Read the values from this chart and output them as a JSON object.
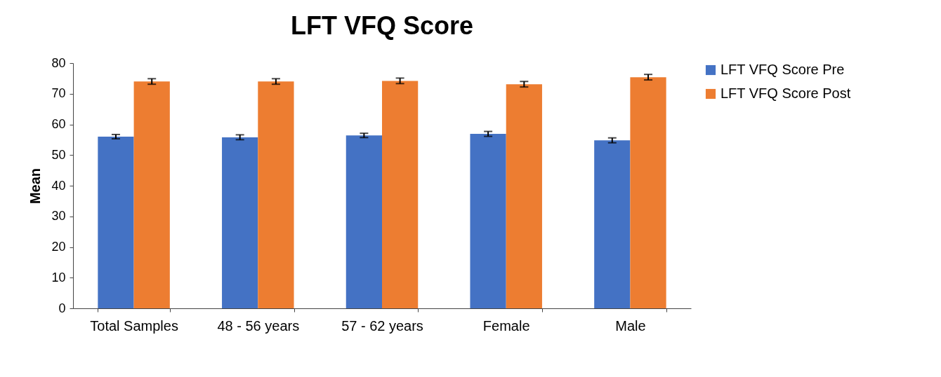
{
  "chart_data": {
    "type": "bar",
    "title": "LFT VFQ Score",
    "ylabel": "Mean",
    "categories": [
      "Total Samples",
      "48 - 56 years",
      "57 - 62 years",
      "Female",
      "Male"
    ],
    "series": [
      {
        "name": "LFT VFQ Score Pre",
        "color": "#4472c4",
        "values": [
          56.0,
          55.8,
          56.4,
          56.9,
          54.8
        ],
        "errors": [
          0.7,
          0.8,
          0.7,
          0.8,
          0.8
        ]
      },
      {
        "name": "LFT VFQ Score Post",
        "color": "#ed7d31",
        "values": [
          74.0,
          74.0,
          74.2,
          73.1,
          75.4
        ],
        "errors": [
          0.9,
          0.9,
          0.9,
          0.9,
          0.9
        ]
      }
    ],
    "ylim": [
      0,
      80
    ],
    "yticks": [
      0,
      10,
      20,
      30,
      40,
      50,
      60,
      70,
      80
    ],
    "grid": false,
    "legend": "right"
  }
}
